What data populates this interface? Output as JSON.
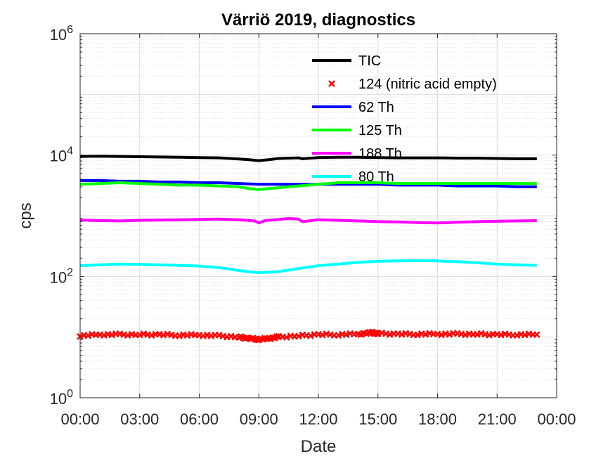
{
  "chart_data": {
    "type": "line",
    "title": "Värriö 2019, diagnostics",
    "xlabel": "Date",
    "ylabel": "cps",
    "yscale": "log",
    "xlim": [
      0,
      24
    ],
    "ylim": [
      1,
      1000000
    ],
    "x_ticks": [
      {
        "value": 0,
        "label": "00:00"
      },
      {
        "value": 3,
        "label": "03:00"
      },
      {
        "value": 6,
        "label": "06:00"
      },
      {
        "value": 9,
        "label": "09:00"
      },
      {
        "value": 12,
        "label": "12:00"
      },
      {
        "value": 15,
        "label": "15:00"
      },
      {
        "value": 18,
        "label": "18:00"
      },
      {
        "value": 21,
        "label": "21:00"
      },
      {
        "value": 24,
        "label": "00:00"
      }
    ],
    "y_ticks": [
      {
        "value": 1,
        "base": "10",
        "exp": "0"
      },
      {
        "value": 100,
        "base": "10",
        "exp": "2"
      },
      {
        "value": 10000,
        "base": "10",
        "exp": "4"
      },
      {
        "value": 1000000,
        "base": "10",
        "exp": "6"
      }
    ],
    "grid": true,
    "minor_grid": true,
    "legend_position": "top-right",
    "series": [
      {
        "name": "TIC",
        "color": "#000000",
        "marker": "line",
        "x": [
          0,
          1,
          2,
          3,
          4,
          5,
          6,
          7,
          8,
          8.5,
          9,
          9.5,
          10,
          11,
          11.2,
          12,
          13,
          14,
          15,
          16,
          17,
          18,
          19,
          20,
          21,
          22,
          23
        ],
        "y": [
          9500,
          9600,
          9500,
          9400,
          9300,
          9200,
          9100,
          9000,
          8600,
          8400,
          8100,
          8400,
          8800,
          9000,
          8700,
          9100,
          9200,
          9200,
          9100,
          9000,
          9000,
          9000,
          8900,
          8900,
          8800,
          8700,
          8700
        ]
      },
      {
        "name": "124 (nitric acid empty)",
        "color": "#ff0000",
        "marker": "x",
        "x": [
          0,
          1,
          2,
          3,
          4,
          5,
          6,
          7,
          8,
          8.5,
          9,
          9.5,
          10,
          11,
          12,
          13,
          14,
          14.7,
          15,
          16,
          17,
          18,
          19,
          20,
          21,
          22,
          23
        ],
        "y": [
          10.5,
          11,
          11,
          11,
          11,
          10.8,
          10.8,
          10.5,
          10,
          9.5,
          9.2,
          9.5,
          10,
          10.5,
          11,
          11,
          11.2,
          11.8,
          11.5,
          11.2,
          11.2,
          11.2,
          11.2,
          11.2,
          11,
          11,
          11
        ]
      },
      {
        "name": "62 Th",
        "color": "#0000ff",
        "marker": "line",
        "x": [
          0,
          1,
          2,
          3,
          4,
          5,
          6,
          7,
          8,
          9,
          10,
          11,
          12,
          13,
          14,
          15,
          16,
          17,
          18,
          19,
          20,
          21,
          22,
          23
        ],
        "y": [
          3800,
          3800,
          3700,
          3700,
          3600,
          3600,
          3500,
          3500,
          3400,
          3300,
          3300,
          3300,
          3300,
          3300,
          3300,
          3300,
          3200,
          3200,
          3200,
          3100,
          3100,
          3100,
          3000,
          3000
        ]
      },
      {
        "name": "125 Th",
        "color": "#00ff00",
        "marker": "line",
        "x": [
          0,
          1,
          2,
          3,
          4,
          5,
          6,
          7,
          8,
          8.5,
          9,
          9.5,
          10,
          11,
          12,
          13,
          14,
          15,
          16,
          17,
          18,
          19,
          20,
          21,
          22,
          23
        ],
        "y": [
          3300,
          3400,
          3500,
          3400,
          3300,
          3200,
          3200,
          3100,
          3000,
          2800,
          2700,
          2800,
          2900,
          3100,
          3300,
          3500,
          3500,
          3500,
          3400,
          3400,
          3400,
          3400,
          3400,
          3400,
          3400,
          3400
        ]
      },
      {
        "name": "188 Th",
        "color": "#ff00ff",
        "marker": "line",
        "x": [
          0,
          1,
          2,
          3,
          4,
          5,
          6,
          7,
          8,
          8.8,
          9,
          9.3,
          10,
          10.5,
          11,
          11.2,
          12,
          13,
          14,
          15,
          16,
          17,
          18,
          19,
          20,
          21,
          22,
          23
        ],
        "y": [
          850,
          830,
          820,
          840,
          850,
          860,
          870,
          880,
          860,
          820,
          760,
          830,
          870,
          900,
          880,
          800,
          860,
          840,
          820,
          800,
          790,
          770,
          760,
          780,
          800,
          810,
          820,
          830
        ]
      },
      {
        "name": "80 Th",
        "color": "#00ffff",
        "marker": "line",
        "x": [
          0,
          1,
          2,
          3,
          4,
          5,
          6,
          7,
          8,
          9,
          10,
          11,
          12,
          13,
          14,
          15,
          16,
          17,
          18,
          19,
          20,
          21,
          22,
          23
        ],
        "y": [
          150,
          155,
          160,
          158,
          155,
          152,
          148,
          140,
          125,
          115,
          120,
          135,
          150,
          160,
          170,
          178,
          180,
          182,
          180,
          175,
          168,
          160,
          155,
          152
        ]
      }
    ]
  }
}
